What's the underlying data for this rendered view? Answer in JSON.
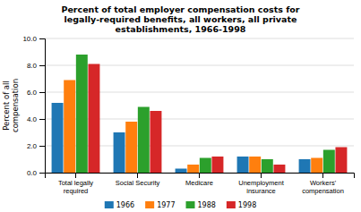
{
  "chart_data": {
    "type": "bar",
    "title": "Percent of total employer compensation costs for\nlegally-required benefits, all workers, all private\nestablishments, 1966-1998",
    "categories": [
      "Total legally\nrequired",
      "Social Security",
      "Medicare",
      "Unemployment\ninsurance",
      "Workers'\ncompensation"
    ],
    "series": [
      {
        "name": "1966",
        "values": [
          5.2,
          3.0,
          0.3,
          1.2,
          1.0
        ]
      },
      {
        "name": "1977",
        "values": [
          6.9,
          3.8,
          0.6,
          1.2,
          1.1
        ]
      },
      {
        "name": "1988",
        "values": [
          8.8,
          4.9,
          1.1,
          1.0,
          1.7
        ]
      },
      {
        "name": "1998",
        "values": [
          8.1,
          4.6,
          1.2,
          0.6,
          1.9
        ]
      }
    ],
    "ylabel": "Percent of all\ncompensation",
    "ylim": [
      0,
      10.0
    ],
    "yticks": [
      {
        "value": 0.0,
        "label": "0.0"
      },
      {
        "value": 2.0,
        "label": "2.0"
      },
      {
        "value": 4.0,
        "label": "4.0"
      },
      {
        "value": 6.0,
        "label": "6.0"
      },
      {
        "value": 8.0,
        "label": "8.0"
      },
      {
        "value": 10.0,
        "label": "10.0"
      }
    ],
    "grid": true,
    "legend": "bottom"
  }
}
